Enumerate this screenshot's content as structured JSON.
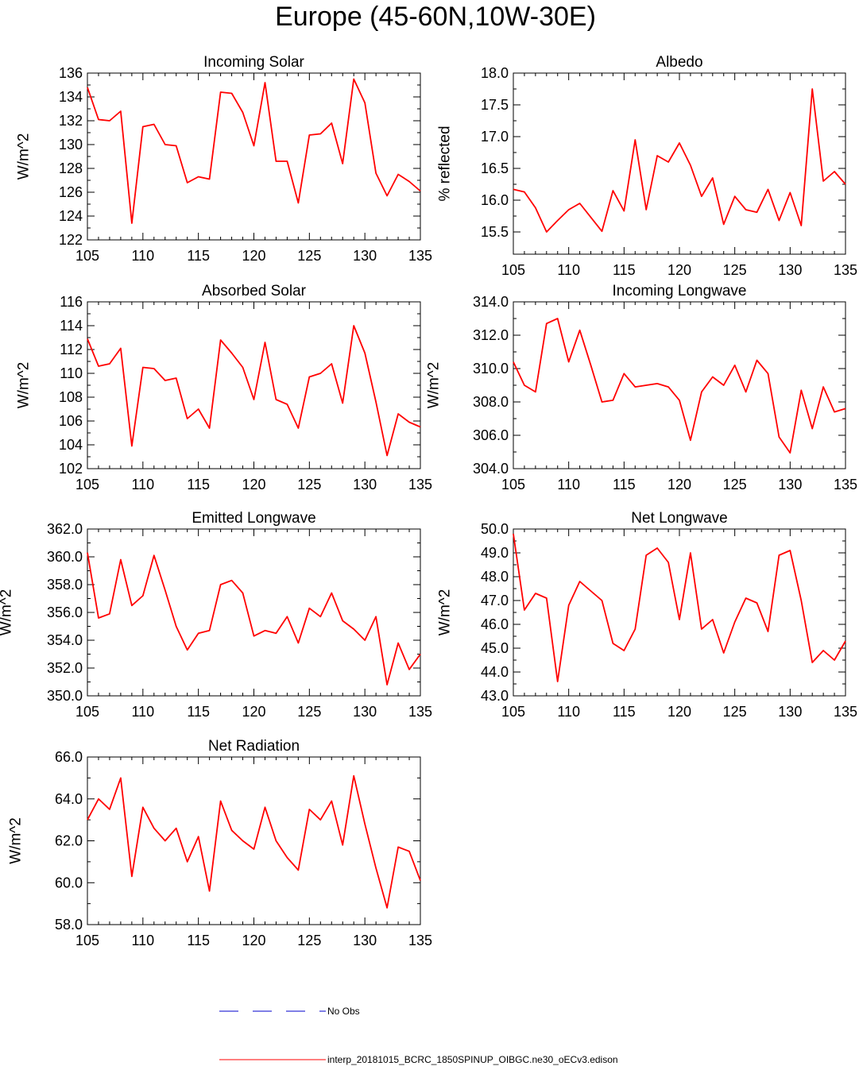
{
  "title": "Europe (45-60N,10W-30E)",
  "legend": {
    "obs_label": "No Obs",
    "obs_color": "#0000cc",
    "model_label": "interp_20181015_BCRC_1850SPINUP_OIBGC.ne30_oECv3.edison",
    "model_color": "#ff0000"
  },
  "chart_data": [
    {
      "type": "line",
      "title": "Incoming Solar",
      "xlabel": "",
      "ylabel": "W/m^2",
      "xlim": [
        105,
        135
      ],
      "ylim": [
        122,
        136
      ],
      "xticks": [
        105,
        110,
        115,
        120,
        125,
        130,
        135
      ],
      "yticks": [
        122,
        124,
        126,
        128,
        130,
        132,
        134,
        136
      ],
      "ytick_labels": [
        "122",
        "124",
        "126",
        "128",
        "130",
        "132",
        "134",
        "136"
      ],
      "x": [
        105,
        106,
        107,
        108,
        109,
        110,
        111,
        112,
        113,
        114,
        115,
        116,
        117,
        118,
        119,
        120,
        121,
        122,
        123,
        124,
        125,
        126,
        127,
        128,
        129,
        130,
        131,
        132,
        133,
        134,
        135
      ],
      "series": [
        {
          "values": [
            134.8,
            132.1,
            132.0,
            132.8,
            123.4,
            131.5,
            131.7,
            130.0,
            129.9,
            126.8,
            127.3,
            127.1,
            134.4,
            134.3,
            132.7,
            129.9,
            135.2,
            128.6,
            128.6,
            125.1,
            130.8,
            130.9,
            131.8,
            128.4,
            135.5,
            133.5,
            127.6,
            125.7,
            127.5,
            126.9,
            126.1
          ]
        }
      ]
    },
    {
      "type": "line",
      "title": "Albedo",
      "xlabel": "",
      "ylabel": "% reflected",
      "xlim": [
        105,
        135
      ],
      "ylim": [
        15.15,
        18.0
      ],
      "xticks": [
        105,
        110,
        115,
        120,
        125,
        130,
        135
      ],
      "yticks": [
        15.5,
        16.0,
        16.5,
        17.0,
        17.5,
        18.0
      ],
      "ytick_labels": [
        "15.5",
        "16.0",
        "16.5",
        "17.0",
        "17.5",
        "18.0"
      ],
      "x": [
        105,
        106,
        107,
        108,
        109,
        110,
        111,
        112,
        113,
        114,
        115,
        116,
        117,
        118,
        119,
        120,
        121,
        122,
        123,
        124,
        125,
        126,
        127,
        128,
        129,
        130,
        131,
        132,
        133,
        134,
        135
      ],
      "series": [
        {
          "values": [
            16.17,
            16.13,
            15.88,
            15.5,
            15.68,
            15.85,
            15.95,
            15.73,
            15.51,
            16.15,
            15.83,
            16.95,
            15.85,
            16.7,
            16.6,
            16.9,
            16.55,
            16.06,
            16.35,
            15.62,
            16.06,
            15.85,
            15.81,
            16.17,
            15.68,
            16.12,
            15.6,
            17.75,
            16.3,
            16.45,
            16.25
          ]
        }
      ]
    },
    {
      "type": "line",
      "title": "Absorbed Solar",
      "xlabel": "",
      "ylabel": "W/m^2",
      "xlim": [
        105,
        135
      ],
      "ylim": [
        102,
        116
      ],
      "xticks": [
        105,
        110,
        115,
        120,
        125,
        130,
        135
      ],
      "yticks": [
        102,
        104,
        106,
        108,
        110,
        112,
        114,
        116
      ],
      "ytick_labels": [
        "102",
        "104",
        "106",
        "108",
        "110",
        "112",
        "114",
        "116"
      ],
      "x": [
        105,
        106,
        107,
        108,
        109,
        110,
        111,
        112,
        113,
        114,
        115,
        116,
        117,
        118,
        119,
        120,
        121,
        122,
        123,
        124,
        125,
        126,
        127,
        128,
        129,
        130,
        131,
        132,
        133,
        134,
        135
      ],
      "series": [
        {
          "values": [
            112.9,
            110.6,
            110.8,
            112.1,
            103.9,
            110.5,
            110.4,
            109.4,
            109.6,
            106.2,
            107.0,
            105.4,
            112.8,
            111.7,
            110.5,
            107.8,
            112.6,
            107.8,
            107.4,
            105.4,
            109.7,
            110.0,
            110.8,
            107.5,
            114.0,
            111.7,
            107.6,
            103.1,
            106.6,
            105.9,
            105.5
          ]
        }
      ]
    },
    {
      "type": "line",
      "title": "Incoming Longwave",
      "xlabel": "",
      "ylabel": "W/m^2",
      "xlim": [
        105,
        135
      ],
      "ylim": [
        304.0,
        314.0
      ],
      "xticks": [
        105,
        110,
        115,
        120,
        125,
        130,
        135
      ],
      "yticks": [
        304,
        306,
        308,
        310,
        312,
        314
      ],
      "ytick_labels": [
        "304.0",
        "306.0",
        "308.0",
        "310.0",
        "312.0",
        "314.0"
      ],
      "x": [
        105,
        106,
        107,
        108,
        109,
        110,
        111,
        112,
        113,
        114,
        115,
        116,
        117,
        118,
        119,
        120,
        121,
        122,
        123,
        124,
        125,
        126,
        127,
        128,
        129,
        130,
        131,
        132,
        133,
        134,
        135
      ],
      "series": [
        {
          "values": [
            310.4,
            309.0,
            308.6,
            312.7,
            313.0,
            310.4,
            312.3,
            310.2,
            308.0,
            308.1,
            309.7,
            308.9,
            309.0,
            309.1,
            308.9,
            308.1,
            305.7,
            308.6,
            309.5,
            309.0,
            310.2,
            308.6,
            310.5,
            309.7,
            305.9,
            304.95,
            308.7,
            306.4,
            308.9,
            307.4,
            307.6
          ]
        }
      ]
    },
    {
      "type": "line",
      "title": "Emitted Longwave",
      "xlabel": "",
      "ylabel": "W/m^2",
      "xlim": [
        105,
        135
      ],
      "ylim": [
        350.0,
        362.0
      ],
      "xticks": [
        105,
        110,
        115,
        120,
        125,
        130,
        135
      ],
      "yticks": [
        350,
        352,
        354,
        356,
        358,
        360,
        362
      ],
      "ytick_labels": [
        "350.0",
        "352.0",
        "354.0",
        "356.0",
        "358.0",
        "360.0",
        "362.0"
      ],
      "x": [
        105,
        106,
        107,
        108,
        109,
        110,
        111,
        112,
        113,
        114,
        115,
        116,
        117,
        118,
        119,
        120,
        121,
        122,
        123,
        124,
        125,
        126,
        127,
        128,
        129,
        130,
        131,
        132,
        133,
        134,
        135
      ],
      "series": [
        {
          "values": [
            360.3,
            355.6,
            355.9,
            359.8,
            356.5,
            357.2,
            360.1,
            357.6,
            355.0,
            353.3,
            354.5,
            354.7,
            358.0,
            358.3,
            357.4,
            354.3,
            354.7,
            354.5,
            355.7,
            353.8,
            356.3,
            355.7,
            357.4,
            355.4,
            354.8,
            354.0,
            355.7,
            350.8,
            353.8,
            351.9,
            353.0
          ]
        }
      ]
    },
    {
      "type": "line",
      "title": "Net Longwave",
      "xlabel": "",
      "ylabel": "W/m^2",
      "xlim": [
        105,
        135
      ],
      "ylim": [
        43.0,
        50.0
      ],
      "xticks": [
        105,
        110,
        115,
        120,
        125,
        130,
        135
      ],
      "yticks": [
        43,
        44,
        45,
        46,
        47,
        48,
        49,
        50
      ],
      "ytick_labels": [
        "43.0",
        "44.0",
        "45.0",
        "46.0",
        "47.0",
        "48.0",
        "49.0",
        "50.0"
      ],
      "x": [
        105,
        106,
        107,
        108,
        109,
        110,
        111,
        112,
        113,
        114,
        115,
        116,
        117,
        118,
        119,
        120,
        121,
        122,
        123,
        124,
        125,
        126,
        127,
        128,
        129,
        130,
        131,
        132,
        133,
        134,
        135
      ],
      "series": [
        {
          "values": [
            49.8,
            46.6,
            47.3,
            47.1,
            43.6,
            46.8,
            47.8,
            47.4,
            47.0,
            45.2,
            44.9,
            45.8,
            48.9,
            49.2,
            48.6,
            46.2,
            49.0,
            45.8,
            46.2,
            44.8,
            46.1,
            47.1,
            46.9,
            45.7,
            48.9,
            49.1,
            47.0,
            44.4,
            44.9,
            44.5,
            45.3
          ]
        }
      ]
    },
    {
      "type": "line",
      "title": "Net Radiation",
      "xlabel": "",
      "ylabel": "W/m^2",
      "xlim": [
        105,
        135
      ],
      "ylim": [
        58.0,
        66.0
      ],
      "xticks": [
        105,
        110,
        115,
        120,
        125,
        130,
        135
      ],
      "yticks": [
        58,
        60,
        62,
        64,
        66
      ],
      "ytick_labels": [
        "58.0",
        "60.0",
        "62.0",
        "64.0",
        "66.0"
      ],
      "x": [
        105,
        106,
        107,
        108,
        109,
        110,
        111,
        112,
        113,
        114,
        115,
        116,
        117,
        118,
        119,
        120,
        121,
        122,
        123,
        124,
        125,
        126,
        127,
        128,
        129,
        130,
        131,
        132,
        133,
        134,
        135
      ],
      "series": [
        {
          "values": [
            63.0,
            64.0,
            63.5,
            65.0,
            60.3,
            63.6,
            62.6,
            62.0,
            62.6,
            61.0,
            62.2,
            59.6,
            63.9,
            62.5,
            62.0,
            61.6,
            63.6,
            62.0,
            61.2,
            60.6,
            63.5,
            63.0,
            63.9,
            61.8,
            65.1,
            62.8,
            60.7,
            58.8,
            61.7,
            61.5,
            60.1
          ]
        }
      ]
    }
  ]
}
